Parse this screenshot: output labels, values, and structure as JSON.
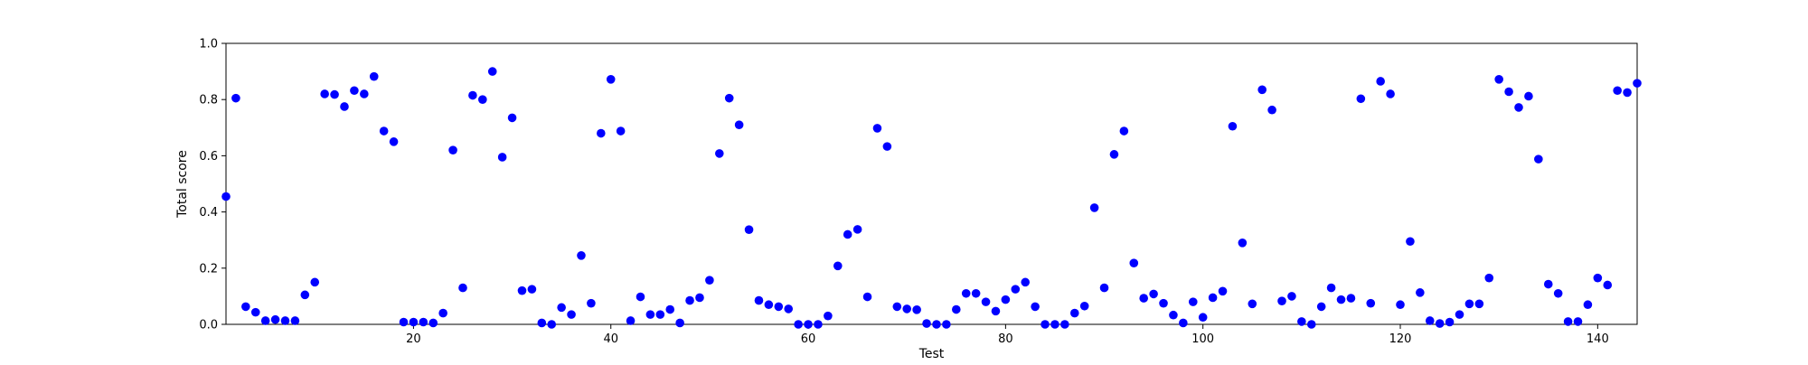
{
  "chart_data": {
    "type": "scatter",
    "title": "",
    "xlabel": "Test",
    "ylabel": "Total score",
    "xlim": [
      1,
      144
    ],
    "ylim": [
      0,
      1
    ],
    "x_ticks": [
      20,
      40,
      60,
      80,
      100,
      120,
      140
    ],
    "y_ticks": [
      0.0,
      0.2,
      0.4,
      0.6,
      0.8,
      1.0
    ],
    "y_tick_labels": [
      "0.0",
      "0.2",
      "0.4",
      "0.6",
      "0.8",
      "1.0"
    ],
    "grid": false,
    "legend": "none",
    "marker_color": "#0000ff",
    "series": [
      {
        "x": [
          1,
          2,
          3,
          4,
          5,
          6,
          7,
          8,
          9,
          10,
          11,
          12,
          13,
          14,
          15,
          16,
          17,
          18,
          19,
          20,
          21,
          22,
          23,
          24,
          25,
          26,
          27,
          28,
          29,
          30,
          31,
          32,
          33,
          34,
          35,
          36,
          37,
          38,
          39,
          40,
          41,
          42,
          43,
          44,
          45,
          46,
          47,
          48,
          49,
          50,
          51,
          52,
          53,
          54,
          55,
          56,
          57,
          58,
          59,
          60,
          61,
          62,
          63,
          64,
          65,
          66,
          67,
          68,
          69,
          70,
          71,
          72,
          73,
          74,
          75,
          76,
          77,
          78,
          79,
          80,
          81,
          82,
          83,
          84,
          85,
          86,
          87,
          88,
          89,
          90,
          91,
          92,
          93,
          94,
          95,
          96,
          97,
          98,
          99,
          100,
          101,
          102,
          103,
          104,
          105,
          106,
          107,
          108,
          109,
          110,
          111,
          112,
          113,
          114,
          115,
          116,
          117,
          118,
          119,
          120,
          121,
          122,
          123,
          124,
          125,
          126,
          127,
          128,
          129,
          130,
          131,
          132,
          133,
          134,
          135,
          136,
          137,
          138,
          139,
          140,
          141,
          142,
          143,
          144
        ],
        "y": [
          0.455,
          0.805,
          0.063,
          0.043,
          0.013,
          0.017,
          0.013,
          0.013,
          0.105,
          0.15,
          0.82,
          0.818,
          0.775,
          0.832,
          0.82,
          0.882,
          0.688,
          0.65,
          0.008,
          0.008,
          0.008,
          0.005,
          0.04,
          0.62,
          0.13,
          0.815,
          0.8,
          0.9,
          0.595,
          0.735,
          0.12,
          0.125,
          0.005,
          0.0,
          0.06,
          0.035,
          0.245,
          0.075,
          0.68,
          0.872,
          0.688,
          0.013,
          0.098,
          0.035,
          0.035,
          0.053,
          0.005,
          0.085,
          0.095,
          0.157,
          0.608,
          0.805,
          0.71,
          0.337,
          0.085,
          0.07,
          0.063,
          0.055,
          0.0,
          0.0,
          0.0,
          0.03,
          0.208,
          0.32,
          0.338,
          0.098,
          0.698,
          0.633,
          0.063,
          0.055,
          0.052,
          0.003,
          0.0,
          0.0,
          0.053,
          0.11,
          0.11,
          0.08,
          0.047,
          0.088,
          0.125,
          0.15,
          0.063,
          0.0,
          0.0,
          0.0,
          0.04,
          0.065,
          0.415,
          0.13,
          0.605,
          0.688,
          0.218,
          0.093,
          0.108,
          0.075,
          0.033,
          0.005,
          0.08,
          0.025,
          0.095,
          0.118,
          0.705,
          0.29,
          0.073,
          0.835,
          0.763,
          0.083,
          0.1,
          0.01,
          0.0,
          0.063,
          0.13,
          0.088,
          0.093,
          0.803,
          0.075,
          0.865,
          0.82,
          0.07,
          0.295,
          0.113,
          0.013,
          0.003,
          0.008,
          0.035,
          0.073,
          0.073,
          0.165,
          0.872,
          0.828,
          0.772,
          0.812,
          0.588,
          0.143,
          0.11,
          0.01,
          0.01,
          0.07,
          0.165,
          0.14,
          0.832,
          0.825,
          0.858
        ]
      }
    ]
  }
}
